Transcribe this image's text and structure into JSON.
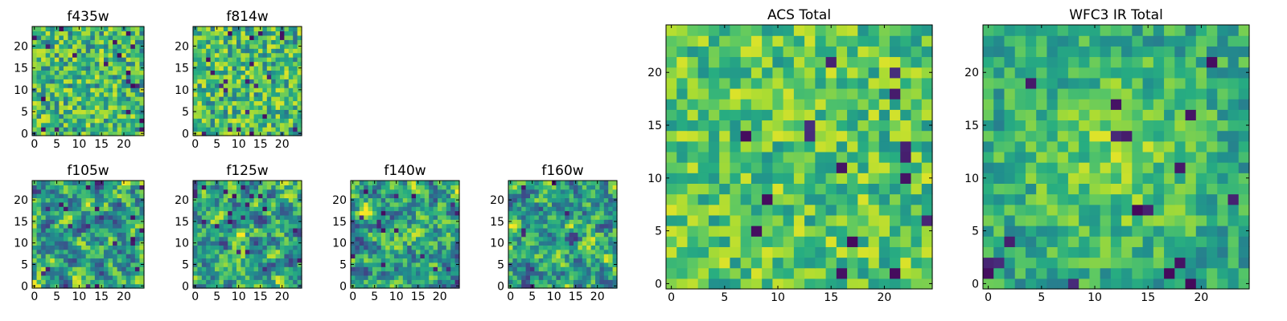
{
  "chart_data": [
    {
      "type": "heatmap",
      "title": "f435w",
      "grid_size": [
        25,
        25
      ],
      "colormap": "viridis",
      "xlim": [
        -0.5,
        24.5
      ],
      "ylim": [
        -0.5,
        24.5
      ],
      "xticks": [
        "0",
        "5",
        "10",
        "15",
        "20"
      ],
      "yticks": [
        "0",
        "5",
        "10",
        "15",
        "20"
      ],
      "texture": "noisy",
      "seed": 11
    },
    {
      "type": "heatmap",
      "title": "f814w",
      "grid_size": [
        25,
        25
      ],
      "colormap": "viridis",
      "xlim": [
        -0.5,
        24.5
      ],
      "ylim": [
        -0.5,
        24.5
      ],
      "xticks": [
        "0",
        "5",
        "10",
        "15",
        "20"
      ],
      "yticks": [
        "0",
        "5",
        "10",
        "15",
        "20"
      ],
      "texture": "noisy",
      "seed": 23
    },
    {
      "type": "heatmap",
      "title": "f105w",
      "grid_size": [
        25,
        25
      ],
      "colormap": "viridis",
      "xlim": [
        -0.5,
        24.5
      ],
      "ylim": [
        -0.5,
        24.5
      ],
      "xticks": [
        "0",
        "5",
        "10",
        "15",
        "20"
      ],
      "yticks": [
        "0",
        "5",
        "10",
        "15",
        "20"
      ],
      "texture": "smooth",
      "seed": 37
    },
    {
      "type": "heatmap",
      "title": "f125w",
      "grid_size": [
        25,
        25
      ],
      "colormap": "viridis",
      "xlim": [
        -0.5,
        24.5
      ],
      "ylim": [
        -0.5,
        24.5
      ],
      "xticks": [
        "0",
        "5",
        "10",
        "15",
        "20"
      ],
      "yticks": [
        "0",
        "5",
        "10",
        "15",
        "20"
      ],
      "texture": "smooth",
      "seed": 41
    },
    {
      "type": "heatmap",
      "title": "f140w",
      "grid_size": [
        25,
        25
      ],
      "colormap": "viridis",
      "xlim": [
        -0.5,
        24.5
      ],
      "ylim": [
        -0.5,
        24.5
      ],
      "xticks": [
        "0",
        "5",
        "10",
        "15",
        "20"
      ],
      "yticks": [
        "0",
        "5",
        "10",
        "15",
        "20"
      ],
      "texture": "smooth",
      "seed": 53
    },
    {
      "type": "heatmap",
      "title": "f160w",
      "grid_size": [
        25,
        25
      ],
      "colormap": "viridis",
      "xlim": [
        -0.5,
        24.5
      ],
      "ylim": [
        -0.5,
        24.5
      ],
      "xticks": [
        "0",
        "5",
        "10",
        "15",
        "20"
      ],
      "yticks": [
        "0",
        "5",
        "10",
        "15",
        "20"
      ],
      "texture": "smooth",
      "seed": 67
    },
    {
      "type": "heatmap",
      "title": "ACS Total",
      "grid_size": [
        25,
        25
      ],
      "colormap": "viridis",
      "xlim": [
        -0.5,
        24.5
      ],
      "ylim": [
        -0.5,
        24.5
      ],
      "xticks": [
        "0",
        "5",
        "10",
        "15",
        "20"
      ],
      "yticks": [
        "0",
        "5",
        "10",
        "15",
        "20"
      ],
      "texture": "noisy-bright",
      "seed": 79
    },
    {
      "type": "heatmap",
      "title": "WFC3 IR Total",
      "grid_size": [
        25,
        25
      ],
      "colormap": "viridis",
      "xlim": [
        -0.5,
        24.5
      ],
      "ylim": [
        -0.5,
        24.5
      ],
      "xticks": [
        "0",
        "5",
        "10",
        "15",
        "20"
      ],
      "yticks": [
        "0",
        "5",
        "10",
        "15",
        "20"
      ],
      "texture": "noisy-center",
      "seed": 97
    }
  ]
}
